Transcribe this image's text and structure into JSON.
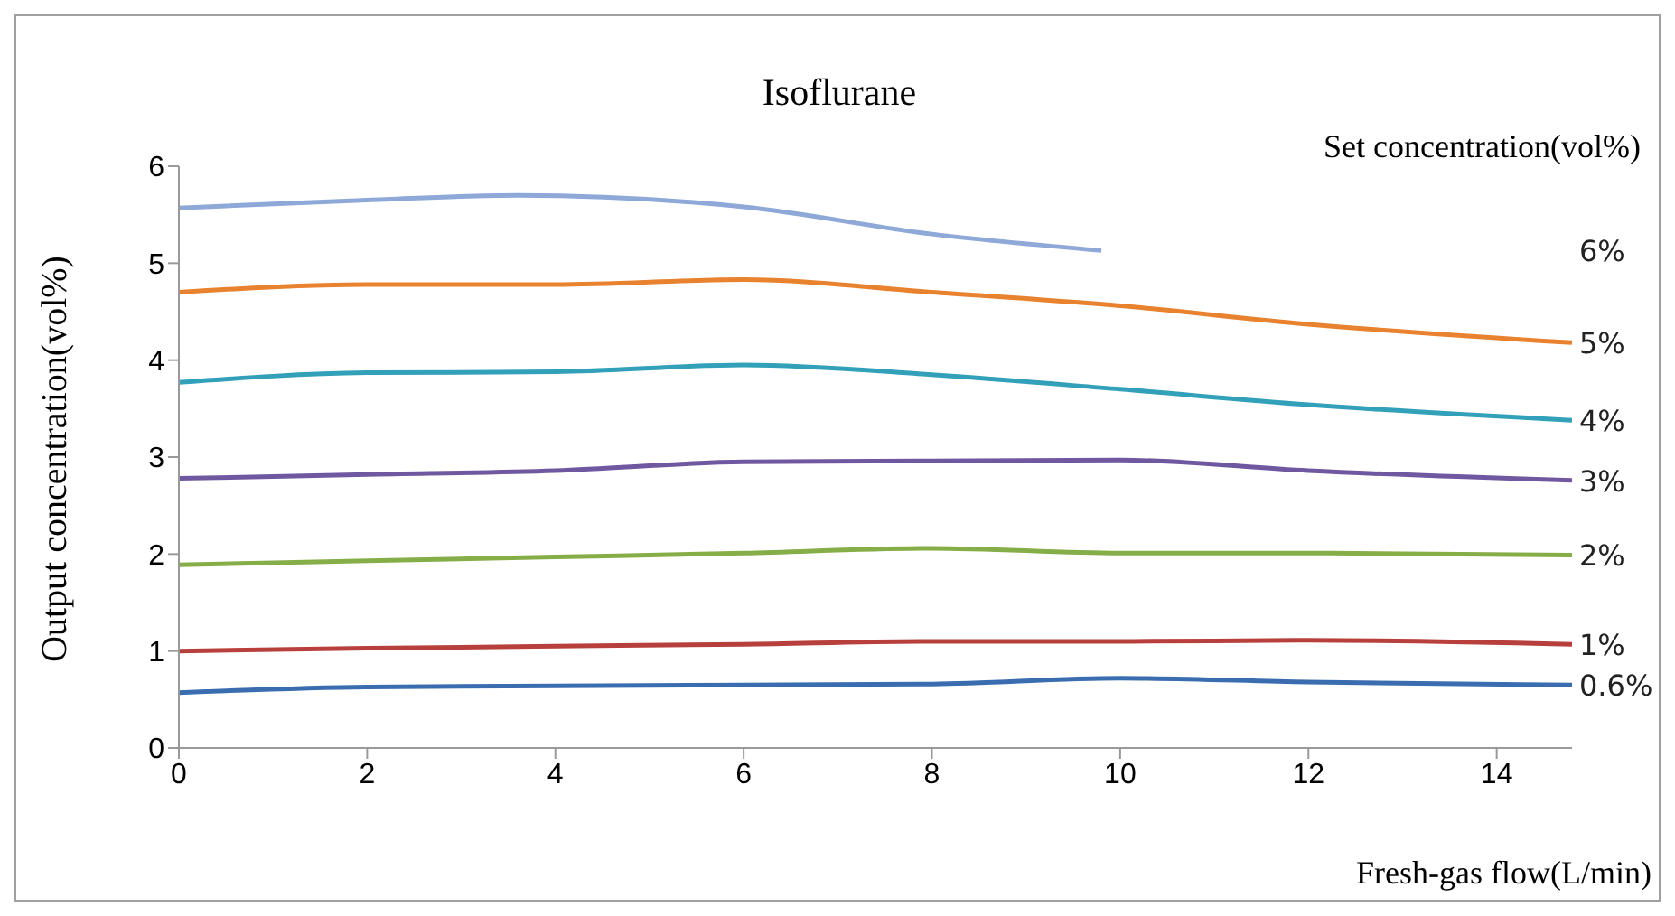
{
  "chart_data": {
    "type": "line",
    "title": "Isoflurane",
    "legend_title": "Set concentration(vol%)",
    "xlabel": "Fresh-gas flow(L/min)",
    "ylabel": "Output concentration(vol%)",
    "x": [
      0,
      2,
      4,
      6,
      8,
      10,
      12,
      14.8
    ],
    "series": [
      {
        "name": "6%",
        "color": "#8ea9d8",
        "x": [
          0,
          2,
          3.6,
          6,
          8,
          9.8
        ],
        "values": [
          5.57,
          5.65,
          5.7,
          5.58,
          5.3,
          5.13
        ]
      },
      {
        "name": "5%",
        "color": "#e8822e",
        "values": [
          4.7,
          4.78,
          4.78,
          4.83,
          4.7,
          4.56,
          4.37,
          4.18
        ]
      },
      {
        "name": "4%",
        "color": "#31a0b8",
        "values": [
          3.77,
          3.87,
          3.88,
          3.95,
          3.85,
          3.7,
          3.54,
          3.38
        ]
      },
      {
        "name": "3%",
        "color": "#7058a0",
        "values": [
          2.78,
          2.82,
          2.86,
          2.95,
          2.96,
          2.97,
          2.86,
          2.76
        ]
      },
      {
        "name": "2%",
        "color": "#86ae48",
        "values": [
          1.89,
          1.93,
          1.97,
          2.01,
          2.06,
          2.01,
          2.01,
          1.99
        ]
      },
      {
        "name": "1%",
        "color": "#b8403c",
        "values": [
          1.0,
          1.03,
          1.05,
          1.07,
          1.1,
          1.1,
          1.11,
          1.07
        ]
      },
      {
        "name": "0.6%",
        "color": "#3a6cb0",
        "values": [
          0.57,
          0.63,
          0.64,
          0.65,
          0.66,
          0.72,
          0.68,
          0.65
        ]
      }
    ],
    "xlim": [
      0,
      14.8
    ],
    "xticks": [
      0,
      2,
      4,
      6,
      8,
      10,
      12,
      14
    ],
    "ylim": [
      0,
      6
    ],
    "yticks": [
      0,
      1,
      2,
      3,
      4,
      5,
      6
    ],
    "grid": false,
    "marker": "none",
    "line_style": "solid"
  }
}
